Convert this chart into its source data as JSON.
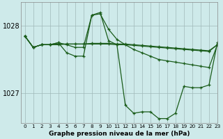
{
  "bg_color": "#ceeaea",
  "grid_color": "#a0b8b8",
  "line_color": "#1a5c1a",
  "title": "Graphe pression niveau de la mer (hPa)",
  "xlim": [
    -0.5,
    23
  ],
  "ylim": [
    1026.55,
    1028.35
  ],
  "yticks": [
    1027,
    1028
  ],
  "xticks": [
    0,
    1,
    2,
    3,
    4,
    5,
    6,
    7,
    8,
    9,
    10,
    11,
    12,
    13,
    14,
    15,
    16,
    17,
    18,
    19,
    20,
    21,
    22,
    23
  ],
  "series": [
    [
      1027.85,
      1027.68,
      1027.72,
      1027.72,
      1027.72,
      1027.73,
      1027.73,
      1027.73,
      1027.73,
      1027.73,
      1027.73,
      1027.72,
      1027.72,
      1027.71,
      1027.7,
      1027.69,
      1027.68,
      1027.67,
      1027.66,
      1027.65,
      1027.64,
      1027.63,
      1027.62,
      1027.72
    ],
    [
      1027.85,
      1027.68,
      1027.72,
      1027.72,
      1027.73,
      1027.73,
      1027.73,
      1027.73,
      1027.74,
      1027.74,
      1027.74,
      1027.73,
      1027.73,
      1027.72,
      1027.71,
      1027.7,
      1027.69,
      1027.68,
      1027.67,
      1027.66,
      1027.65,
      1027.64,
      1027.63,
      1027.72
    ],
    [
      1027.85,
      1027.68,
      1027.72,
      1027.72,
      1027.75,
      1027.72,
      1027.68,
      1027.68,
      1028.16,
      1028.18,
      1027.95,
      1027.8,
      1027.72,
      1027.65,
      1027.6,
      1027.55,
      1027.5,
      1027.48,
      1027.46,
      1027.44,
      1027.42,
      1027.4,
      1027.38,
      1027.72
    ],
    [
      1027.85,
      1027.68,
      1027.72,
      1027.72,
      1027.75,
      1027.6,
      1027.55,
      1027.55,
      1028.16,
      1028.2,
      1027.78,
      1027.72,
      1026.82,
      1026.7,
      1026.72,
      1026.72,
      1026.62,
      1026.62,
      1026.7,
      1027.1,
      1027.08,
      1027.08,
      1027.12,
      1027.75
    ]
  ]
}
